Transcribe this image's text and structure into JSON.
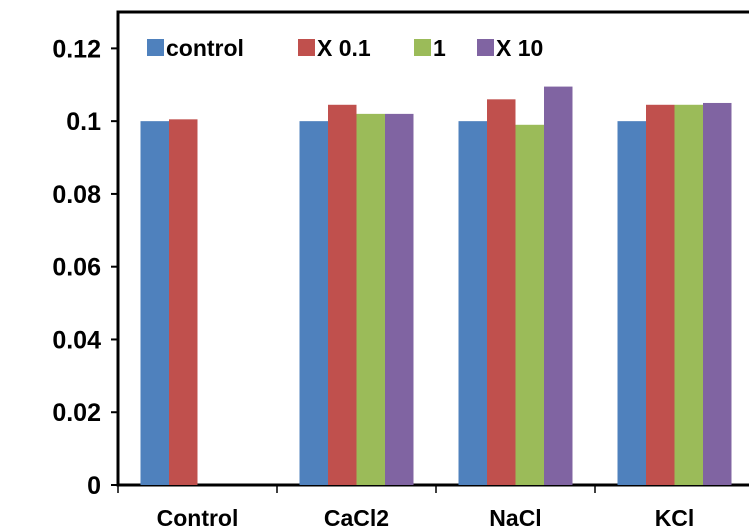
{
  "chart_data": {
    "type": "bar",
    "title": "",
    "xlabel": "",
    "ylabel": "",
    "ylim": [
      0,
      0.13
    ],
    "yticks": [
      "0",
      "0.02",
      "0.04",
      "0.06",
      "0.08",
      "0.1",
      "0.12"
    ],
    "categories": [
      "Control",
      "CaCl2",
      "NaCl",
      "KCl"
    ],
    "grid": false,
    "legend_position": "top",
    "series": [
      {
        "name": "control",
        "color": "#4F81BD",
        "values": [
          0.1,
          0.1,
          0.1,
          0.1
        ]
      },
      {
        "name": "X 0.1",
        "color": "#C0504D",
        "values": [
          0.1005,
          0.1045,
          0.106,
          0.1045
        ]
      },
      {
        "name": "1",
        "color": "#9BBB59",
        "values": [
          null,
          0.102,
          0.099,
          0.1045
        ]
      },
      {
        "name": "X 10",
        "color": "#8064A2",
        "values": [
          null,
          0.102,
          0.1095,
          0.105
        ]
      }
    ]
  }
}
